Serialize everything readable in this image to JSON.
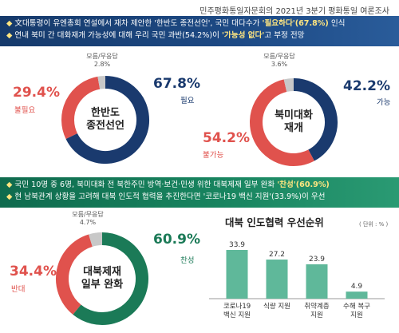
{
  "header": {
    "title": "민주평화통일자문회의 2021년 3분기 평화통일 여론조사"
  },
  "band1": {
    "line1": {
      "prefix": "文대통령이 유엔총회 연설에서 재차 제안한 '한반도 종전선언', 국민 대다수가 ",
      "highlight": "'필요하다'(67.8%)",
      "suffix": " 인식"
    },
    "line2": {
      "prefix": "연내 북미 간 대화재개 가능성에 대해 우리 국민 과반(54.2%)이 ",
      "highlight": "'가능성 없다'",
      "suffix": "고 부정 전망"
    }
  },
  "band2": {
    "line1": {
      "prefix": "국민 10명 중 6명, 북미대화 전 북한주민 방역·보건·민생 위한 대북제재 일부 완화 ",
      "highlight": "'찬성'(60.9%)",
      "suffix": ""
    },
    "line2": {
      "prefix": "현 남북관계 상황을 고려해 대북 인도적 협력을 추진한다면 '코로나19 백신 지원'(33.9%)이 우선",
      "highlight": "",
      "suffix": ""
    }
  },
  "colors": {
    "navy": "#1a3a6e",
    "red": "#e0524d",
    "green": "#1b7a57",
    "gray": "#c8c8c8",
    "bar": "#5fb89a"
  },
  "chart_data": [
    {
      "type": "pie",
      "center_label": [
        "한반도",
        "종전선언"
      ],
      "slices": [
        {
          "name": "필요",
          "value": 67.8,
          "color": "#1a3a6e"
        },
        {
          "name": "불필요",
          "value": 29.4,
          "color": "#e0524d"
        },
        {
          "name": "모름/무응답",
          "value": 2.8,
          "color": "#c8c8c8"
        }
      ]
    },
    {
      "type": "pie",
      "center_label": [
        "북미대화",
        "재개"
      ],
      "slices": [
        {
          "name": "가능",
          "value": 42.2,
          "color": "#1a3a6e"
        },
        {
          "name": "불가능",
          "value": 54.2,
          "color": "#e0524d"
        },
        {
          "name": "모름/무응답",
          "value": 3.6,
          "color": "#c8c8c8"
        }
      ]
    },
    {
      "type": "pie",
      "center_label": [
        "대북제재",
        "일부 완화"
      ],
      "slices": [
        {
          "name": "찬성",
          "value": 60.9,
          "color": "#1b7a57"
        },
        {
          "name": "반대",
          "value": 34.4,
          "color": "#e0524d"
        },
        {
          "name": "모름/무응답",
          "value": 4.7,
          "color": "#c8c8c8"
        }
      ]
    },
    {
      "type": "bar",
      "title": "대북 인도협력 우선순위",
      "unit": "( 단위 : % )",
      "categories": [
        [
          "코로나19",
          "백신 지원"
        ],
        [
          "식량 지원"
        ],
        [
          "취약계층",
          "지원"
        ],
        [
          "수해 복구",
          "지원"
        ]
      ],
      "values": [
        33.9,
        27.2,
        23.9,
        4.9
      ]
    }
  ]
}
